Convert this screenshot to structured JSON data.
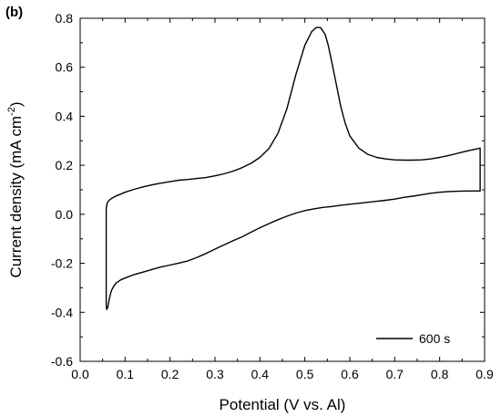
{
  "chart_data": {
    "type": "line",
    "panel_label": "(b)",
    "xlabel": "Potential (V vs. Al)",
    "ylabel": {
      "main": "Current density (mA cm",
      "sup": "-2",
      "close": ")"
    },
    "xlim": [
      0.0,
      0.9
    ],
    "ylim": [
      -0.6,
      0.8
    ],
    "xticks": [
      0.0,
      0.1,
      0.2,
      0.3,
      0.4,
      0.5,
      0.6,
      0.7,
      0.8,
      0.9
    ],
    "yticks": [
      -0.6,
      -0.4,
      -0.2,
      0.0,
      0.2,
      0.4,
      0.6,
      0.8
    ],
    "xtick_labels": [
      "0.0",
      "0.1",
      "0.2",
      "0.3",
      "0.4",
      "0.5",
      "0.6",
      "0.7",
      "0.8",
      "0.9"
    ],
    "ytick_labels": [
      "-0.6",
      "-0.4",
      "-0.2",
      "0.0",
      "0.2",
      "0.4",
      "0.6",
      "0.8"
    ],
    "grid": false,
    "legend_position": "bottom-right",
    "series": [
      {
        "name": "600 s",
        "color": "#000000",
        "x": [
          0.058,
          0.059,
          0.06,
          0.062,
          0.065,
          0.07,
          0.08,
          0.09,
          0.1,
          0.12,
          0.14,
          0.16,
          0.18,
          0.2,
          0.22,
          0.24,
          0.26,
          0.28,
          0.3,
          0.32,
          0.34,
          0.36,
          0.38,
          0.4,
          0.42,
          0.44,
          0.46,
          0.48,
          0.5,
          0.515,
          0.525,
          0.535,
          0.545,
          0.552,
          0.56,
          0.57,
          0.58,
          0.59,
          0.6,
          0.62,
          0.64,
          0.66,
          0.68,
          0.7,
          0.72,
          0.74,
          0.76,
          0.78,
          0.8,
          0.82,
          0.84,
          0.86,
          0.88,
          0.89,
          0.89,
          0.88,
          0.86,
          0.84,
          0.82,
          0.8,
          0.78,
          0.76,
          0.74,
          0.72,
          0.7,
          0.68,
          0.66,
          0.64,
          0.62,
          0.6,
          0.58,
          0.56,
          0.54,
          0.52,
          0.5,
          0.48,
          0.46,
          0.44,
          0.42,
          0.4,
          0.38,
          0.36,
          0.34,
          0.32,
          0.3,
          0.28,
          0.26,
          0.24,
          0.22,
          0.2,
          0.18,
          0.16,
          0.14,
          0.12,
          0.1,
          0.09,
          0.08,
          0.075,
          0.07,
          0.066,
          0.063,
          0.061,
          0.059,
          0.058,
          0.058
        ],
        "y": [
          0.02,
          0.035,
          0.045,
          0.052,
          0.058,
          0.065,
          0.075,
          0.082,
          0.09,
          0.102,
          0.112,
          0.12,
          0.127,
          0.133,
          0.139,
          0.142,
          0.146,
          0.15,
          0.157,
          0.165,
          0.176,
          0.19,
          0.208,
          0.232,
          0.268,
          0.33,
          0.43,
          0.57,
          0.69,
          0.745,
          0.762,
          0.762,
          0.735,
          0.69,
          0.62,
          0.53,
          0.44,
          0.37,
          0.32,
          0.27,
          0.245,
          0.232,
          0.226,
          0.222,
          0.221,
          0.221,
          0.222,
          0.226,
          0.232,
          0.24,
          0.249,
          0.258,
          0.266,
          0.27,
          0.095,
          0.095,
          0.095,
          0.094,
          0.093,
          0.09,
          0.086,
          0.08,
          0.074,
          0.069,
          0.062,
          0.057,
          0.053,
          0.049,
          0.045,
          0.041,
          0.037,
          0.032,
          0.028,
          0.022,
          0.015,
          0.005,
          -0.008,
          -0.022,
          -0.038,
          -0.055,
          -0.073,
          -0.092,
          -0.108,
          -0.125,
          -0.142,
          -0.16,
          -0.176,
          -0.19,
          -0.199,
          -0.207,
          -0.215,
          -0.225,
          -0.236,
          -0.246,
          -0.26,
          -0.268,
          -0.28,
          -0.293,
          -0.31,
          -0.335,
          -0.362,
          -0.382,
          -0.388,
          -0.37,
          0.02
        ]
      }
    ]
  }
}
